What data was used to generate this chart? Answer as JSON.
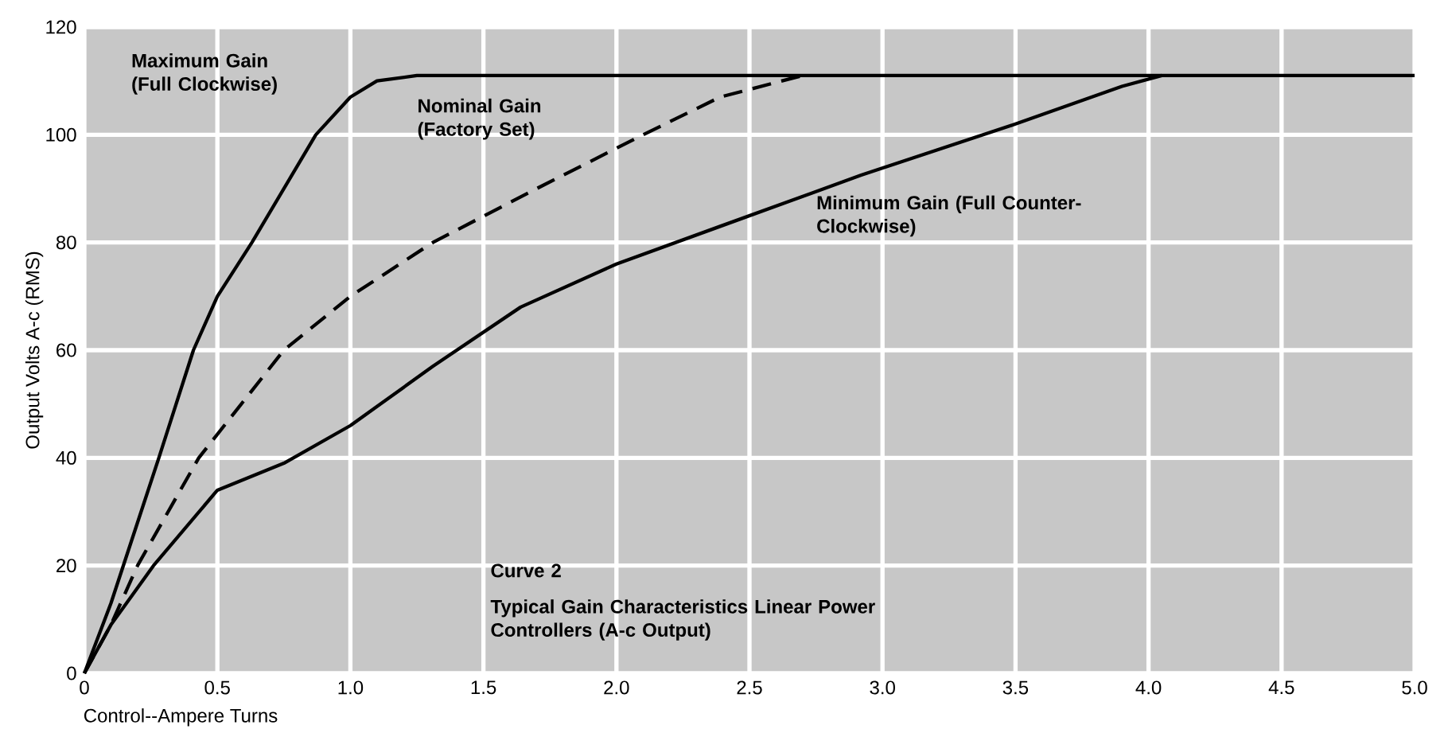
{
  "chart_data": {
    "type": "line",
    "xlabel": "Control--Ampere Turns",
    "ylabel": "Output Volts A-c (RMS)",
    "xlim": [
      0,
      5.0
    ],
    "ylim": [
      0,
      120
    ],
    "xticks": [
      0,
      0.5,
      {
        "value": 1.0,
        "label": "1.0"
      },
      1.5,
      {
        "value": 2.0,
        "label": "2.0"
      },
      2.5,
      {
        "value": 3.0,
        "label": "3.0"
      },
      3.5,
      {
        "value": 4.0,
        "label": "4.0"
      },
      4.5,
      {
        "value": 5.0,
        "label": "5.0"
      }
    ],
    "yticks": [
      0,
      20,
      40,
      60,
      80,
      100,
      120
    ],
    "grid": true,
    "marker": "none",
    "series": [
      {
        "color": "#000000",
        "line_style": "solid",
        "x": [
          0,
          0.1,
          0.2,
          0.28,
          0.41,
          0.5,
          0.63,
          0.75,
          0.87,
          1.0,
          1.1,
          1.25,
          5.0
        ],
        "values": [
          0,
          13,
          28,
          40,
          60,
          70,
          80,
          90,
          100,
          107,
          110,
          111,
          111
        ]
      },
      {
        "color": "#000000",
        "line_style": "dashed",
        "x": [
          0,
          0.1,
          0.2,
          0.43,
          0.75,
          1.0,
          1.31,
          1.7,
          2.1,
          2.39,
          2.7
        ],
        "values": [
          0,
          9,
          20,
          40,
          60,
          70,
          80,
          90,
          100,
          107,
          111
        ]
      },
      {
        "color": "#000000",
        "line_style": "solid",
        "x": [
          0,
          0.1,
          0.26,
          0.5,
          0.75,
          1.0,
          1.31,
          1.64,
          2.0,
          2.39,
          2.92,
          3.5,
          3.9,
          4.05
        ],
        "values": [
          0,
          9,
          20,
          34,
          39,
          46,
          57,
          68,
          76,
          83,
          92.5,
          102,
          109,
          111
        ]
      }
    ],
    "annotations": [
      "Maximum Gain (Full Clockwise)",
      "Nominal Gain (Factory Set)",
      "Minimum Gain (Full Counter-Clockwise)",
      "Curve 2",
      "Typical Gain Characteristics Linear Power Controllers (A-c Output)"
    ]
  }
}
